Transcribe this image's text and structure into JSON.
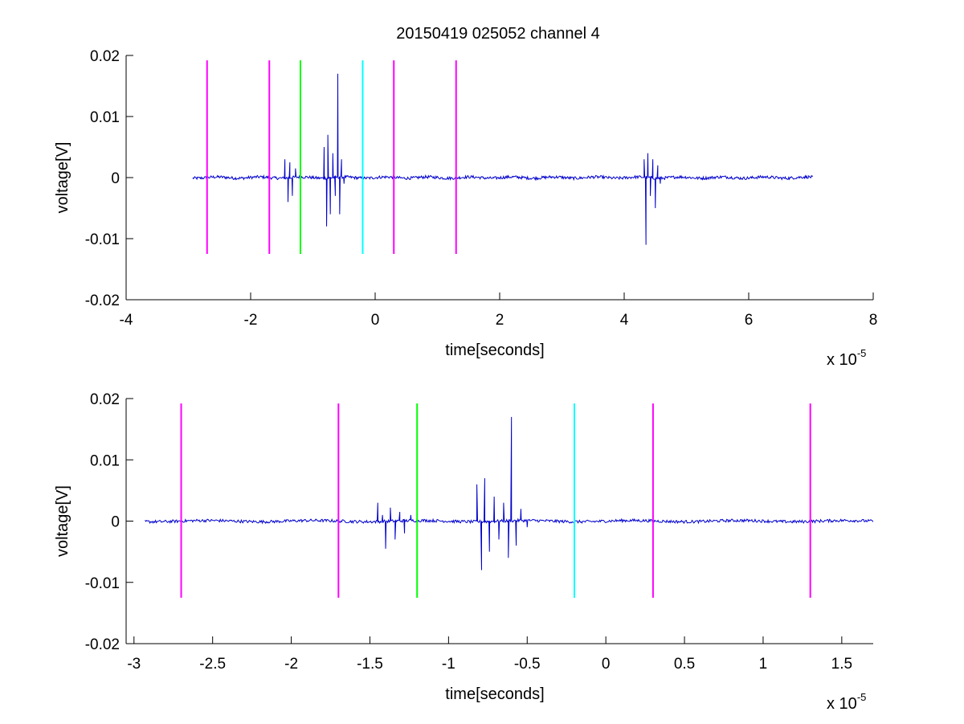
{
  "figure_title": "20150419 025052 channel 4",
  "chart_data": [
    {
      "type": "line",
      "title": "20150419 025052 channel 4",
      "xlabel": "time[seconds]",
      "ylabel": "voltage[V]",
      "x_exponent_prefix": "x 10",
      "x_exponent": "-5",
      "xlim": [
        -4,
        8
      ],
      "ylim": [
        -0.02,
        0.02
      ],
      "x_ticks": [
        -4,
        -2,
        0,
        2,
        4,
        6,
        8
      ],
      "x_tick_labels": [
        "-4",
        "-2",
        "0",
        "2",
        "4",
        "6",
        "8"
      ],
      "y_ticks": [
        -0.02,
        -0.01,
        0,
        0.01,
        0.02
      ],
      "y_tick_labels": [
        "-0.02",
        "-0.01",
        "0",
        "0.01",
        "0.02"
      ],
      "grid": false,
      "series": [
        {
          "color": "#0000cc",
          "x_range": [
            -2.93,
            7.03
          ],
          "noise_amplitude": 0.0004,
          "bursts": [
            {
              "x": [
                -1.45,
                -1.4,
                -1.37,
                -1.33,
                -1.28,
                -1.2
              ],
              "y": [
                0.003,
                -0.004,
                0.0025,
                -0.003,
                0.0015,
                -0.0005
              ]
            },
            {
              "x": [
                -0.82,
                -0.78,
                -0.76,
                -0.72,
                -0.68,
                -0.64,
                -0.6,
                -0.57,
                -0.54,
                -0.5
              ],
              "y": [
                0.005,
                -0.008,
                0.007,
                -0.006,
                0.004,
                -0.003,
                0.017,
                -0.006,
                0.003,
                -0.001
              ]
            },
            {
              "x": [
                4.32,
                4.35,
                4.38,
                4.42,
                4.46,
                4.5,
                4.54,
                4.58
              ],
              "y": [
                0.003,
                -0.011,
                0.004,
                -0.003,
                0.003,
                -0.005,
                0.002,
                -0.001
              ]
            }
          ]
        }
      ],
      "vertical_markers": [
        {
          "x": -2.7,
          "color": "#ff00ff",
          "y_top": 0.0192,
          "y_bottom": -0.0125
        },
        {
          "x": -1.7,
          "color": "#ff00ff",
          "y_top": 0.0192,
          "y_bottom": -0.0125
        },
        {
          "x": -1.2,
          "color": "#00ff00",
          "y_top": 0.0192,
          "y_bottom": -0.0125
        },
        {
          "x": -0.2,
          "color": "#00ffff",
          "y_top": 0.0192,
          "y_bottom": -0.0125
        },
        {
          "x": 0.3,
          "color": "#ff00ff",
          "y_top": 0.0192,
          "y_bottom": -0.0125
        },
        {
          "x": 1.3,
          "color": "#ff00ff",
          "y_top": 0.0192,
          "y_bottom": -0.0125
        }
      ]
    },
    {
      "type": "line",
      "title": "",
      "xlabel": "time[seconds]",
      "ylabel": "voltage[V]",
      "x_exponent_prefix": "x 10",
      "x_exponent": "-5",
      "xlim": [
        -3.05,
        1.7
      ],
      "ylim": [
        -0.02,
        0.02
      ],
      "x_ticks": [
        -3,
        -2.5,
        -2,
        -1.5,
        -1,
        -0.5,
        0,
        0.5,
        1,
        1.5
      ],
      "x_tick_labels": [
        "-3",
        "-2.5",
        "-2",
        "-1.5",
        "-1",
        "-0.5",
        "0",
        "0.5",
        "1",
        "1.5"
      ],
      "y_ticks": [
        -0.02,
        -0.01,
        0,
        0.01,
        0.02
      ],
      "y_tick_labels": [
        "-0.02",
        "-0.01",
        "0",
        "0.01",
        "0.02"
      ],
      "grid": false,
      "series": [
        {
          "color": "#0000cc",
          "x_range": [
            -2.93,
            1.7
          ],
          "noise_amplitude": 0.0004,
          "bursts": [
            {
              "x": [
                -1.45,
                -1.42,
                -1.4,
                -1.37,
                -1.34,
                -1.31,
                -1.28,
                -1.24,
                -1.2
              ],
              "y": [
                0.003,
                0.001,
                -0.0045,
                0.0022,
                -0.003,
                0.0015,
                -0.002,
                0.001,
                -0.0005
              ]
            },
            {
              "x": [
                -0.82,
                -0.79,
                -0.77,
                -0.74,
                -0.71,
                -0.68,
                -0.65,
                -0.62,
                -0.6,
                -0.57,
                -0.54,
                -0.5
              ],
              "y": [
                0.006,
                -0.008,
                0.007,
                -0.005,
                0.004,
                -0.003,
                0.003,
                -0.006,
                0.017,
                -0.004,
                0.002,
                -0.001
              ]
            }
          ]
        }
      ],
      "vertical_markers": [
        {
          "x": -2.7,
          "color": "#ff00ff",
          "y_top": 0.0192,
          "y_bottom": -0.0125
        },
        {
          "x": -1.7,
          "color": "#ff00ff",
          "y_top": 0.0192,
          "y_bottom": -0.0125
        },
        {
          "x": -1.2,
          "color": "#00ff00",
          "y_top": 0.0192,
          "y_bottom": -0.0125
        },
        {
          "x": -0.2,
          "color": "#00ffff",
          "y_top": 0.0192,
          "y_bottom": -0.0125
        },
        {
          "x": 0.3,
          "color": "#ff00ff",
          "y_top": 0.0192,
          "y_bottom": -0.0125
        },
        {
          "x": 1.3,
          "color": "#ff00ff",
          "y_top": 0.0192,
          "y_bottom": -0.0125
        }
      ]
    }
  ]
}
